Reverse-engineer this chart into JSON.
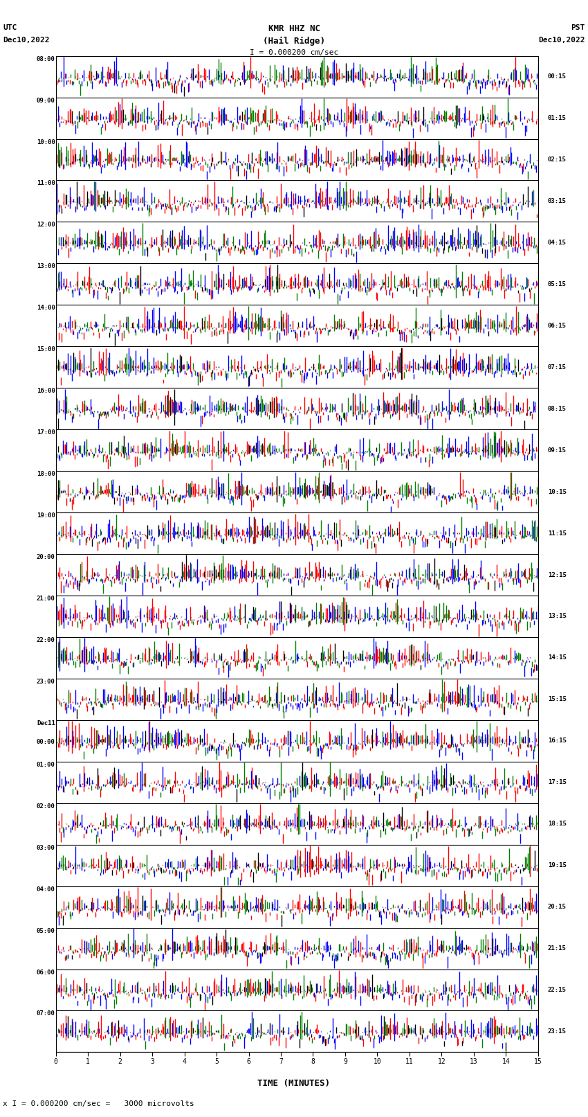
{
  "title_line1": "KMR HHZ NC",
  "title_line2": "(Hail Ridge)",
  "scale_text": "I = 0.000200 cm/sec",
  "utc_label": "UTC",
  "utc_date": "Dec10,2022",
  "pst_label": "PST",
  "pst_date": "Dec10,2022",
  "left_times": [
    "08:00",
    "09:00",
    "10:00",
    "11:00",
    "12:00",
    "13:00",
    "14:00",
    "15:00",
    "16:00",
    "17:00",
    "18:00",
    "19:00",
    "20:00",
    "21:00",
    "22:00",
    "23:00",
    "Dec11\n00:00",
    "01:00",
    "02:00",
    "03:00",
    "04:00",
    "05:00",
    "06:00",
    "07:00"
  ],
  "right_times": [
    "00:15",
    "01:15",
    "02:15",
    "03:15",
    "04:15",
    "05:15",
    "06:15",
    "07:15",
    "08:15",
    "09:15",
    "10:15",
    "11:15",
    "12:15",
    "13:15",
    "14:15",
    "15:15",
    "16:15",
    "17:15",
    "18:15",
    "19:15",
    "20:15",
    "21:15",
    "22:15",
    "23:15"
  ],
  "xlabel": "TIME (MINUTES)",
  "xticklabels": [
    "0",
    "1",
    "2",
    "3",
    "4",
    "5",
    "6",
    "7",
    "8",
    "9",
    "10",
    "11",
    "12",
    "13",
    "14",
    "15"
  ],
  "footer_text": "x I = 0.000200 cm/sec =   3000 microvolts",
  "n_rows": 24,
  "minutes_per_row": 15,
  "bg_color": "#ffffff",
  "colors": [
    "#ff0000",
    "#0000ff",
    "#008000",
    "#000000"
  ],
  "color_probs": [
    0.35,
    0.3,
    0.25,
    0.1
  ],
  "fig_width": 8.5,
  "fig_height": 16.13,
  "dpi": 100
}
